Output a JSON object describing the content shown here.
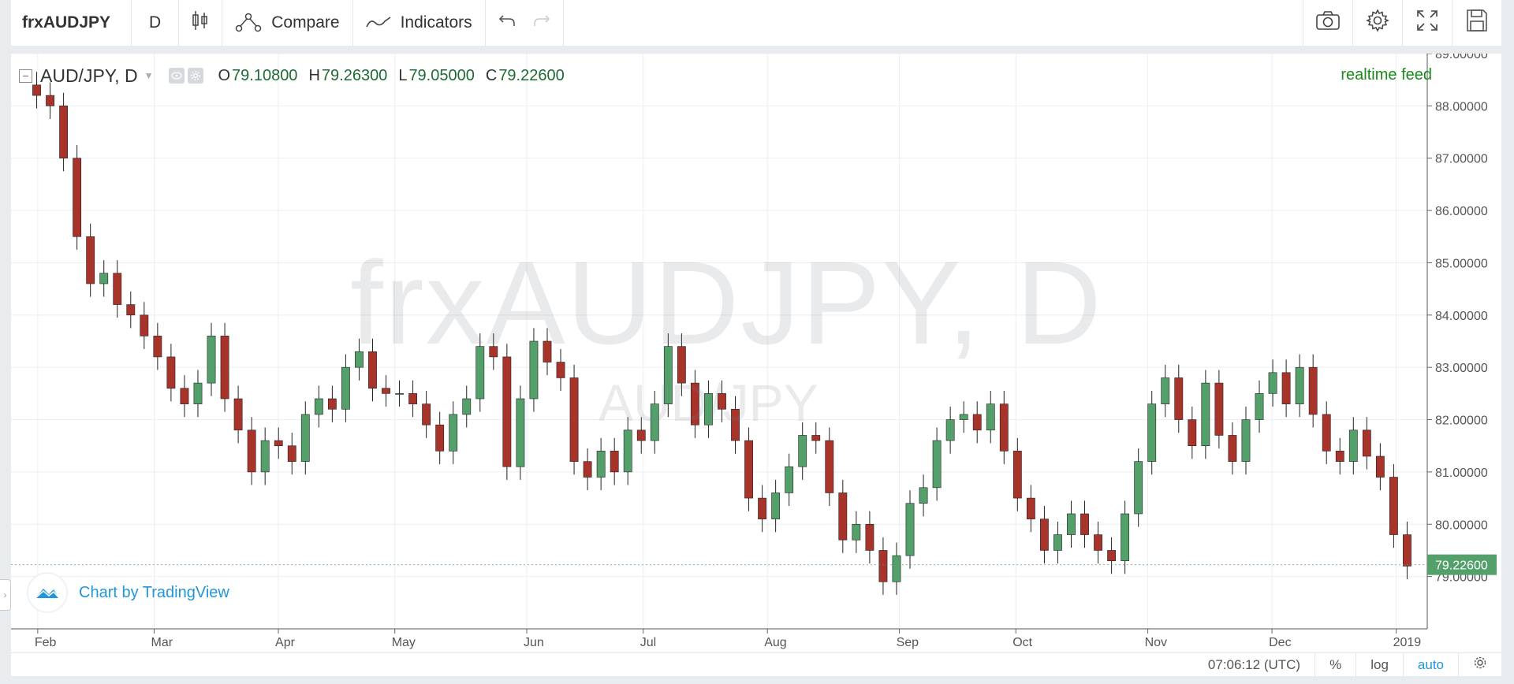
{
  "toolbar": {
    "symbol": "frxAUDJPY",
    "interval": "D",
    "compare_label": "Compare",
    "indicators_label": "Indicators"
  },
  "legend": {
    "title": "AUD/JPY, D",
    "open_label": "O",
    "open_value": "79.10800",
    "high_label": "H",
    "high_value": "79.26300",
    "low_label": "L",
    "low_value": "79.05000",
    "close_label": "C",
    "close_value": "79.22600"
  },
  "realtime_label": "realtime feed",
  "watermark": {
    "main": "frxAUDJPY, D",
    "sub": "AUD/JPY"
  },
  "credit_label": "Chart by TradingView",
  "statusbar": {
    "time": "07:06:12 (UTC)",
    "percent": "%",
    "log": "log",
    "auto": "auto"
  },
  "colors": {
    "up": "#53a06b",
    "down": "#a8332a",
    "price_tag": "#53a06b",
    "accent": "#2196d8"
  },
  "chart_data": {
    "type": "candlestick",
    "symbol": "AUD/JPY",
    "interval": "D",
    "ylim": [
      78.0,
      89.0
    ],
    "y_ticks": [
      "89.00000",
      "88.00000",
      "87.00000",
      "86.00000",
      "85.00000",
      "84.00000",
      "83.00000",
      "82.00000",
      "81.00000",
      "80.00000",
      "79.00000"
    ],
    "x_ticks": [
      "Feb",
      "Mar",
      "Apr",
      "May",
      "Jun",
      "Jul",
      "Aug",
      "Sep",
      "Oct",
      "Nov",
      "Dec",
      "2019"
    ],
    "last_price": "79.22600",
    "close_series": [
      88.2,
      88.0,
      87.0,
      85.5,
      84.6,
      84.8,
      84.2,
      84.0,
      83.6,
      83.2,
      82.6,
      82.3,
      82.7,
      83.6,
      82.4,
      81.8,
      81.0,
      81.6,
      81.5,
      81.2,
      82.1,
      82.4,
      82.2,
      83.0,
      83.3,
      82.6,
      82.5,
      82.5,
      82.3,
      81.9,
      81.4,
      82.1,
      82.4,
      83.4,
      83.2,
      81.1,
      82.4,
      83.5,
      83.1,
      82.8,
      81.2,
      80.9,
      81.4,
      81.0,
      81.8,
      81.6,
      82.3,
      83.4,
      82.7,
      81.9,
      82.5,
      82.2,
      81.6,
      80.5,
      80.1,
      80.6,
      81.1,
      81.7,
      81.6,
      80.6,
      79.7,
      80.0,
      79.5,
      78.9,
      79.4,
      80.4,
      80.7,
      81.6,
      82.0,
      82.1,
      81.8,
      82.3,
      81.4,
      80.5,
      80.1,
      79.5,
      79.8,
      80.2,
      79.8,
      79.5,
      79.3,
      80.2,
      81.2,
      82.3,
      82.8,
      82.0,
      81.5,
      82.7,
      81.7,
      81.2,
      82.0,
      82.5,
      82.9,
      82.3,
      83.0,
      82.1,
      81.4,
      81.2,
      81.8,
      81.3,
      80.9,
      79.8,
      79.2
    ]
  }
}
